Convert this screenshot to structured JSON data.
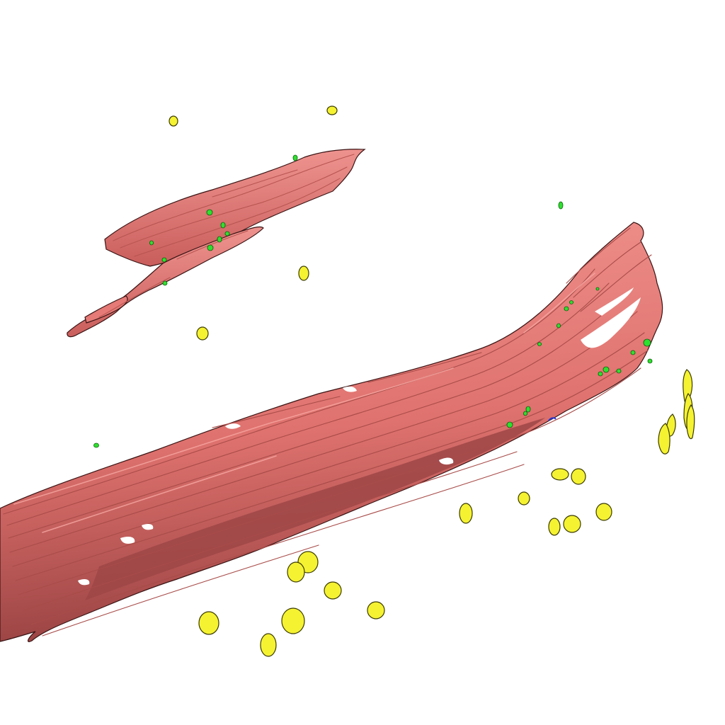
{
  "scene": {
    "colors": {
      "background": "#ffffff",
      "fiber_light": "#ef8a86",
      "fiber_mid": "#dd6f6c",
      "fiber_dark": "#9c4444",
      "fiber_outline": "#3a1414",
      "cell_fill": "#f5f232",
      "cell_outline": "#3b3b00",
      "marker_green": "#2fe02f",
      "marker_blue": "#2a36d0"
    }
  }
}
